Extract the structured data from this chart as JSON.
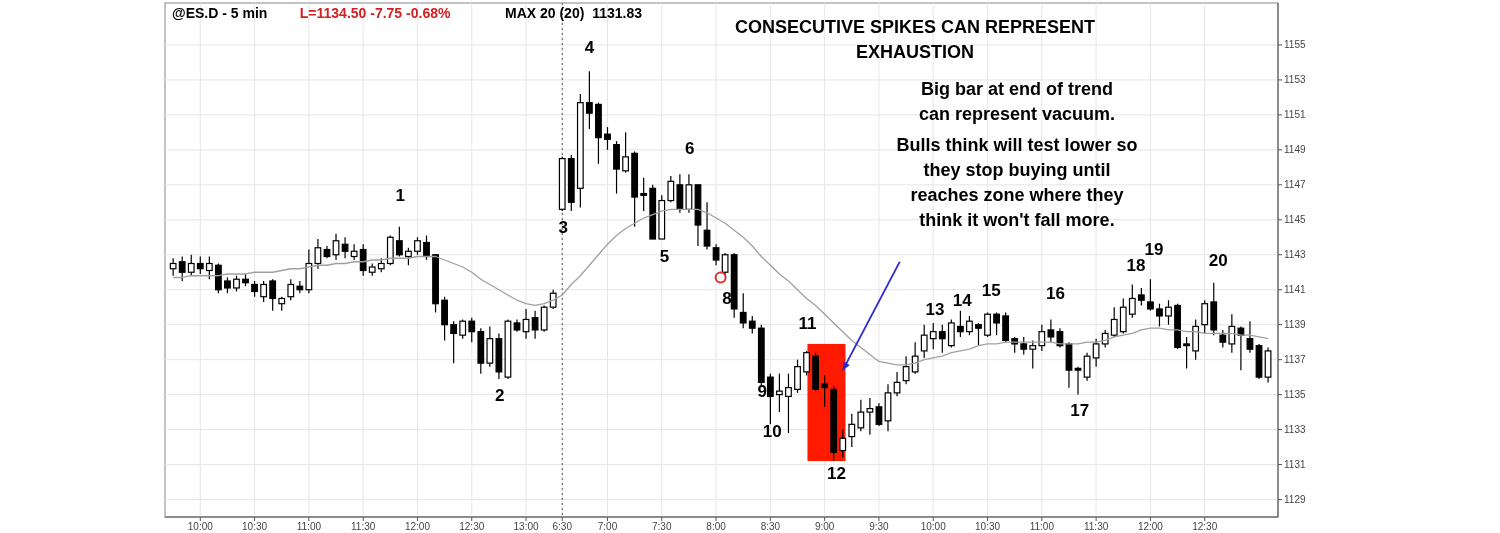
{
  "chart_data": {
    "type": "candlestick",
    "title": "CONSECUTIVE SPIKES CAN REPRESENT EXHAUSTION",
    "categories": [
      null,
      null,
      null,
      "10:00",
      null,
      null,
      null,
      null,
      null,
      "10:30",
      null,
      null,
      null,
      null,
      null,
      "11:00",
      null,
      null,
      null,
      null,
      null,
      "11:30",
      null,
      null,
      null,
      null,
      null,
      "12:00",
      null,
      null,
      null,
      null,
      null,
      "12:30",
      null,
      null,
      null,
      null,
      null,
      "13:00",
      null,
      null,
      null,
      "6:30",
      null,
      null,
      null,
      null,
      "7:00",
      null,
      null,
      null,
      null,
      null,
      "7:30",
      null,
      null,
      null,
      null,
      null,
      "8:00",
      null,
      null,
      null,
      null,
      null,
      "8:30",
      null,
      null,
      null,
      null,
      null,
      "9:00",
      null,
      null,
      null,
      null,
      null,
      "9:30",
      null,
      null,
      null,
      null,
      null,
      "10:00",
      null,
      null,
      null,
      null,
      null,
      "10:30",
      null,
      null,
      null,
      null,
      null,
      "11:00",
      null,
      null,
      null,
      null,
      null,
      "11:30",
      null,
      null,
      null,
      null,
      null,
      "12:00",
      null,
      null,
      null,
      null,
      null,
      "12:30",
      null,
      null,
      null,
      null,
      null,
      null,
      null
    ],
    "series": [
      {
        "color": "#000000",
        "ohlc": [
          [
            1142.2,
            1142.8,
            1141.8,
            1142.5
          ],
          [
            1142.6,
            1142.9,
            1141.5,
            1142.0
          ],
          [
            1142.0,
            1143.0,
            1141.8,
            1142.5
          ],
          [
            1142.5,
            1142.9,
            1141.9,
            1142.2
          ],
          [
            1142.1,
            1142.9,
            1141.6,
            1142.5
          ],
          [
            1142.4,
            1142.5,
            1140.8,
            1141.0
          ],
          [
            1141.5,
            1141.7,
            1140.8,
            1141.1
          ],
          [
            1141.1,
            1141.8,
            1140.9,
            1141.6
          ],
          [
            1141.6,
            1141.9,
            1141.2,
            1141.4
          ],
          [
            1141.3,
            1141.5,
            1140.6,
            1140.9
          ],
          [
            1140.6,
            1141.5,
            1140.3,
            1141.3
          ],
          [
            1141.5,
            1141.6,
            1139.8,
            1140.5
          ],
          [
            1140.2,
            1140.6,
            1139.8,
            1140.5
          ],
          [
            1140.6,
            1141.6,
            1140.4,
            1141.3
          ],
          [
            1141.2,
            1141.5,
            1140.8,
            1141.0
          ],
          [
            1141.0,
            1143.3,
            1140.8,
            1142.5
          ],
          [
            1142.5,
            1143.9,
            1142.2,
            1143.4
          ],
          [
            1143.3,
            1143.5,
            1142.8,
            1142.9
          ],
          [
            1143.0,
            1144.2,
            1142.7,
            1143.8
          ],
          [
            1143.6,
            1144.0,
            1142.8,
            1143.2
          ],
          [
            1142.9,
            1143.6,
            1142.7,
            1143.2
          ],
          [
            1143.3,
            1143.6,
            1141.8,
            1142.1
          ],
          [
            1142.0,
            1142.5,
            1141.8,
            1142.3
          ],
          [
            1142.2,
            1142.8,
            1142.0,
            1142.5
          ],
          [
            1142.5,
            1144.1,
            1142.4,
            1144.0
          ],
          [
            1143.8,
            1144.6,
            1142.9,
            1143.0
          ],
          [
            1142.9,
            1143.4,
            1142.4,
            1143.2
          ],
          [
            1143.2,
            1144.0,
            1143.0,
            1143.8
          ],
          [
            1143.7,
            1144.1,
            1142.7,
            1142.9
          ],
          [
            1143.0,
            1143.0,
            1139.7,
            1140.2
          ],
          [
            1140.4,
            1140.6,
            1138.1,
            1139.0
          ],
          [
            1139.0,
            1139.2,
            1136.8,
            1138.5
          ],
          [
            1138.4,
            1139.3,
            1138.2,
            1139.2
          ],
          [
            1139.2,
            1139.4,
            1138.0,
            1138.6
          ],
          [
            1138.6,
            1138.8,
            1136.2,
            1136.8
          ],
          [
            1136.8,
            1138.9,
            1136.6,
            1138.2
          ],
          [
            1138.2,
            1138.5,
            1135.9,
            1136.3
          ],
          [
            1136.0,
            1139.3,
            1135.9,
            1139.2
          ],
          [
            1139.1,
            1139.3,
            1138.6,
            1138.7
          ],
          [
            1138.6,
            1139.9,
            1138.2,
            1139.3
          ],
          [
            1139.4,
            1139.8,
            1138.2,
            1138.7
          ],
          [
            1138.7,
            1140.1,
            1138.6,
            1140.0
          ],
          [
            1140.0,
            1141.0,
            1139.9,
            1140.8
          ],
          [
            1145.6,
            1148.6,
            1145.5,
            1148.5
          ],
          [
            1148.5,
            1148.7,
            1145.5,
            1146.0
          ],
          [
            1146.8,
            1152.2,
            1145.7,
            1151.7
          ],
          [
            1151.7,
            1153.5,
            1150.2,
            1151.1
          ],
          [
            1151.6,
            1151.7,
            1148.2,
            1149.7
          ],
          [
            1149.9,
            1150.3,
            1149.0,
            1149.6
          ],
          [
            1149.3,
            1149.5,
            1146.5,
            1147.9
          ],
          [
            1147.8,
            1150.0,
            1147.7,
            1148.6
          ],
          [
            1148.8,
            1148.9,
            1144.6,
            1146.3
          ],
          [
            1146.5,
            1147.4,
            1145.5,
            1146.4
          ],
          [
            1146.8,
            1147.0,
            1143.9,
            1143.9
          ],
          [
            1143.9,
            1146.4,
            1143.9,
            1146.1
          ],
          [
            1146.1,
            1147.5,
            1146.0,
            1147.2
          ],
          [
            1147.0,
            1147.6,
            1145.4,
            1145.6
          ],
          [
            1145.6,
            1147.6,
            1145.4,
            1147.0
          ],
          [
            1147.0,
            1147.0,
            1143.5,
            1144.7
          ],
          [
            1144.4,
            1146.0,
            1143.3,
            1143.5
          ],
          [
            1143.4,
            1143.6,
            1142.4,
            1142.7
          ],
          [
            1142.0,
            1143.1,
            1141.8,
            1143.0
          ],
          [
            1143.0,
            1143.1,
            1139.4,
            1139.9
          ],
          [
            1139.7,
            1140.8,
            1138.8,
            1139.1
          ],
          [
            1139.2,
            1139.5,
            1138.5,
            1138.8
          ],
          [
            1138.8,
            1139.0,
            1135.5,
            1135.7
          ],
          [
            1136.0,
            1136.2,
            1133.3,
            1134.9
          ],
          [
            1135.0,
            1136.2,
            1134.0,
            1135.2
          ],
          [
            1134.9,
            1136.2,
            1132.8,
            1135.4
          ],
          [
            1135.3,
            1137.0,
            1135.1,
            1136.6
          ],
          [
            1136.3,
            1137.5,
            1136.1,
            1137.4
          ],
          [
            1137.2,
            1137.4,
            1135.2,
            1135.3
          ],
          [
            1135.6,
            1136.1,
            1134.3,
            1135.4
          ],
          [
            1135.3,
            1135.5,
            1131.2,
            1131.7
          ],
          [
            1131.8,
            1133.0,
            1131.4,
            1132.5
          ],
          [
            1132.6,
            1133.9,
            1132.0,
            1133.3
          ],
          [
            1133.1,
            1134.7,
            1132.9,
            1134.0
          ],
          [
            1134.0,
            1134.8,
            1132.7,
            1134.2
          ],
          [
            1134.3,
            1134.5,
            1133.2,
            1133.3
          ],
          [
            1133.5,
            1135.6,
            1132.9,
            1135.1
          ],
          [
            1135.1,
            1136.3,
            1134.9,
            1135.7
          ],
          [
            1135.8,
            1137.2,
            1135.6,
            1136.6
          ],
          [
            1136.3,
            1138.0,
            1136.2,
            1137.2
          ],
          [
            1137.5,
            1139.0,
            1137.1,
            1138.4
          ],
          [
            1138.2,
            1139.1,
            1137.6,
            1138.6
          ],
          [
            1138.6,
            1139.0,
            1137.4,
            1138.2
          ],
          [
            1137.8,
            1139.3,
            1137.7,
            1139.1
          ],
          [
            1138.9,
            1139.8,
            1138.3,
            1138.6
          ],
          [
            1138.6,
            1139.5,
            1138.4,
            1139.2
          ],
          [
            1139.0,
            1139.1,
            1137.8,
            1138.8
          ],
          [
            1138.4,
            1139.7,
            1138.3,
            1139.6
          ],
          [
            1139.6,
            1139.7,
            1138.4,
            1139.1
          ],
          [
            1139.5,
            1139.7,
            1138.0,
            1138.1
          ],
          [
            1138.2,
            1138.3,
            1137.4,
            1137.9
          ],
          [
            1137.9,
            1138.3,
            1137.3,
            1137.6
          ],
          [
            1137.6,
            1138.1,
            1136.5,
            1137.8
          ],
          [
            1137.8,
            1139.0,
            1137.5,
            1138.6
          ],
          [
            1138.7,
            1139.3,
            1138.0,
            1138.3
          ],
          [
            1138.6,
            1138.8,
            1137.7,
            1137.8
          ],
          [
            1137.9,
            1138.0,
            1135.4,
            1136.4
          ],
          [
            1136.5,
            1136.6,
            1135.0,
            1136.4
          ],
          [
            1136.0,
            1137.4,
            1135.8,
            1137.2
          ],
          [
            1137.1,
            1138.2,
            1136.6,
            1137.9
          ],
          [
            1137.9,
            1138.7,
            1137.7,
            1138.5
          ],
          [
            1138.4,
            1140.0,
            1138.3,
            1139.3
          ],
          [
            1138.6,
            1140.5,
            1138.5,
            1140.0
          ],
          [
            1139.6,
            1141.3,
            1139.4,
            1140.5
          ],
          [
            1140.7,
            1141.1,
            1140.1,
            1140.4
          ],
          [
            1140.3,
            1141.6,
            1139.8,
            1139.9
          ],
          [
            1139.9,
            1140.2,
            1138.9,
            1139.5
          ],
          [
            1139.5,
            1140.4,
            1139.0,
            1140.0
          ],
          [
            1140.1,
            1140.2,
            1137.6,
            1137.7
          ],
          [
            1137.9,
            1138.3,
            1136.5,
            1137.8
          ],
          [
            1137.5,
            1139.3,
            1137.0,
            1138.9
          ],
          [
            1139.0,
            1140.4,
            1138.5,
            1140.2
          ],
          [
            1140.3,
            1141.4,
            1138.4,
            1138.7
          ],
          [
            1138.4,
            1138.7,
            1137.7,
            1138.0
          ],
          [
            1137.9,
            1139.6,
            1137.4,
            1138.9
          ],
          [
            1138.8,
            1138.9,
            1136.4,
            1138.4
          ],
          [
            1138.2,
            1139.2,
            1137.4,
            1137.6
          ],
          [
            1137.8,
            1137.9,
            1135.9,
            1136.0
          ],
          [
            1136.0,
            1137.7,
            1135.7,
            1137.5
          ]
        ]
      },
      {
        "type": "line",
        "color": "#a0a0a0",
        "values": [
          1141.7,
          1141.7,
          1141.8,
          1141.8,
          1141.8,
          1141.8,
          1141.9,
          1141.9,
          1141.9,
          1142.0,
          1142.0,
          1142.0,
          1142.1,
          1142.2,
          1142.2,
          1142.3,
          1142.4,
          1142.4,
          1142.5,
          1142.5,
          1142.6,
          1142.6,
          1142.7,
          1142.7,
          1142.8,
          1142.8,
          1142.8,
          1142.9,
          1142.9,
          1142.9,
          1142.7,
          1142.5,
          1142.3,
          1142.0,
          1141.6,
          1141.3,
          1141.0,
          1140.7,
          1140.4,
          1140.2,
          1140.1,
          1140.2,
          1140.4,
          1140.7,
          1141.3,
          1141.8,
          1142.4,
          1143.0,
          1143.6,
          1144.1,
          1144.5,
          1144.8,
          1145.1,
          1145.3,
          1145.5,
          1145.6,
          1145.6,
          1145.6,
          1145.6,
          1145.4,
          1145.1,
          1144.8,
          1144.4,
          1144.0,
          1143.5,
          1142.9,
          1142.4,
          1141.9,
          1141.5,
          1141.0,
          1140.5,
          1140.1,
          1139.6,
          1139.1,
          1138.6,
          1138.1,
          1137.7,
          1137.3,
          1136.9,
          1136.8,
          1136.7,
          1136.7,
          1136.8,
          1137.0,
          1137.1,
          1137.2,
          1137.4,
          1137.5,
          1137.6,
          1137.8,
          1137.9,
          1137.9,
          1138.0,
          1138.0,
          1138.0,
          1138.0,
          1138.0,
          1138.0,
          1137.9,
          1137.9,
          1137.9,
          1138.0,
          1138.0,
          1138.1,
          1138.3,
          1138.4,
          1138.5,
          1138.7,
          1138.8,
          1138.8,
          1138.7,
          1138.7,
          1138.6,
          1138.6,
          1138.5,
          1138.5,
          1138.5,
          1138.5,
          1138.4,
          1138.4,
          1138.3,
          1138.2
        ]
      }
    ],
    "ylim": [
      1128.0,
      1157.4
    ],
    "yticks": [
      1129,
      1131,
      1133,
      1135,
      1137,
      1139,
      1141,
      1143,
      1145,
      1147,
      1149,
      1151,
      1153,
      1155
    ],
    "grid": true,
    "ref_lines": [
      {
        "axis": "x",
        "value": "6:30",
        "line_style": "dotted",
        "color": "#555555"
      }
    ],
    "annotations": [
      "@ES.D - 5 min",
      "L=1134.50 -7.75 -0.68%",
      "MAX 20 (20)  1131.83",
      "Big bar at end of trend",
      "can represent vacuum.",
      "Bulls think will test lower so",
      "they stop buying until",
      "reaches zone where they",
      "think it won't fall more.",
      "1",
      "2",
      "3",
      "4",
      "5",
      "6",
      "8",
      "9",
      "10",
      "11",
      "12",
      "13",
      "14",
      "15",
      "16",
      "17",
      "18",
      "19",
      "20"
    ]
  }
}
